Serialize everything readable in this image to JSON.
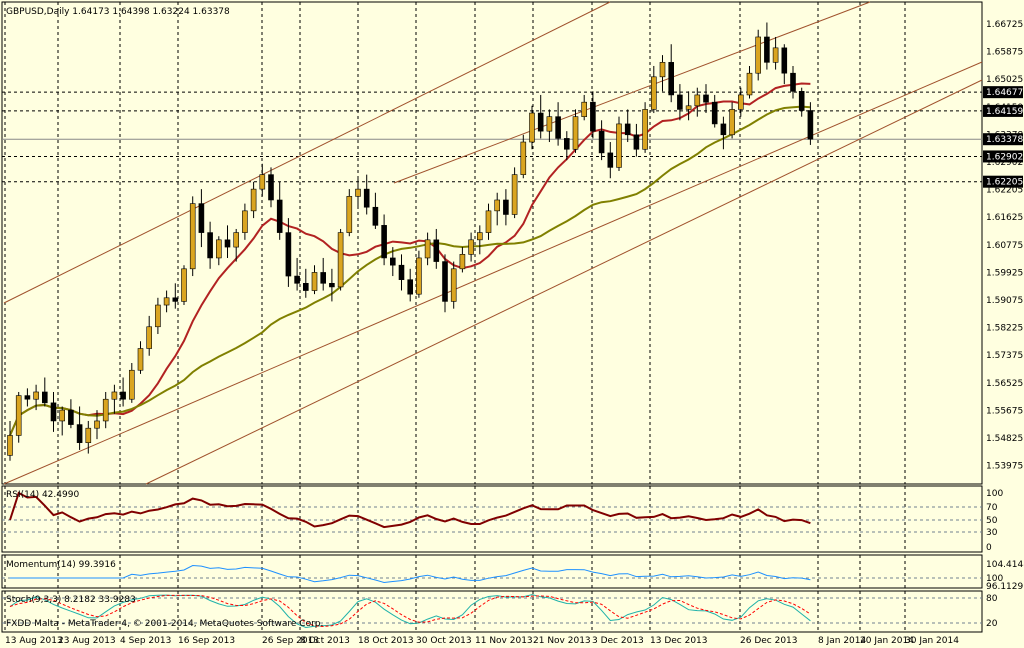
{
  "main": {
    "symbol_line": "GBPUSD,Daily  1.64173 1.64398 1.63224 1.63378",
    "price_ticks": [
      "1.66725",
      "1.65875",
      "1.65025",
      "1.64159",
      "1.63378",
      "1.62902",
      "1.62205",
      "1.61625",
      "1.60775",
      "1.59925",
      "1.59075",
      "1.58225",
      "1.57375",
      "1.56525",
      "1.55675",
      "1.54825",
      "1.53975"
    ],
    "price_labels": [
      {
        "text": "1.64677",
        "value": 1.64677
      },
      {
        "text": "1.64159",
        "value": 1.64159
      },
      {
        "text": "1.63378",
        "value": 1.63378
      },
      {
        "text": "1.62902",
        "value": 1.62902
      },
      {
        "text": "1.62205",
        "value": 1.62205
      }
    ],
    "date_labels": [
      "13 Aug 2013",
      "23 Aug 2013",
      "4 Sep 2013",
      "16 Sep 2013",
      "26 Sep 2013",
      "8 Oct 2013",
      "18 Oct 2013",
      "30 Oct 2013",
      "11 Nov 2013",
      "21 Nov 2013",
      "3 Dec 2013",
      "13 Dec 2013",
      "26 Dec 2013",
      "8 Jan 2014",
      "20 Jan 2014",
      "30 Jan 2014"
    ],
    "footer": "FXDD Malta - MetaTrader 4, © 2001-2014, MetaQuotes Software Corp."
  },
  "rsi": {
    "label": "RSI(14) 42.4990",
    "ticks": [
      "100",
      "70",
      "50",
      "30",
      "0"
    ]
  },
  "momentum": {
    "label": "Momentum(14) 99.3916",
    "ticks": [
      "104.4148",
      "100",
      "96.1129"
    ]
  },
  "stoch": {
    "label": "Stoch(9,3,3) 8.2182 33.9283",
    "ticks": [
      "80",
      "20"
    ]
  },
  "colors": {
    "background": "#ffffe0",
    "bull": "#daa520",
    "bear": "#000000",
    "ma_fast": "#b22222",
    "ma_slow": "#808000",
    "channel": "#a0522d",
    "rsi": "#800000",
    "momentum": "#1e90ff",
    "stoch_main": "#20b2aa",
    "stoch_signal": "#ff0000"
  },
  "chart_data": {
    "type": "candlestick",
    "ylim": [
      1.5397,
      1.67
    ],
    "dates": [
      "13 Aug 2013",
      "23 Aug 2013",
      "4 Sep 2013",
      "16 Sep 2013",
      "26 Sep 2013",
      "8 Oct 2013",
      "18 Oct 2013",
      "30 Oct 2013",
      "11 Nov 2013",
      "21 Nov 2013",
      "3 Dec 2013",
      "13 Dec 2013",
      "26 Dec 2013",
      "8 Jan 2014",
      "20 Jan 2014",
      "30 Jan 2014"
    ],
    "ohlc": [
      [
        1.5465,
        1.556,
        1.545,
        1.552
      ],
      [
        1.552,
        1.564,
        1.55,
        1.563
      ],
      [
        1.563,
        1.565,
        1.56,
        1.562
      ],
      [
        1.562,
        1.566,
        1.559,
        1.564
      ],
      [
        1.564,
        1.568,
        1.56,
        1.561
      ],
      [
        1.561,
        1.564,
        1.553,
        1.556
      ],
      [
        1.556,
        1.56,
        1.552,
        1.559
      ],
      [
        1.559,
        1.562,
        1.554,
        1.555
      ],
      [
        1.555,
        1.56,
        1.548,
        1.55
      ],
      [
        1.55,
        1.556,
        1.547,
        1.554
      ],
      [
        1.554,
        1.559,
        1.551,
        1.556
      ],
      [
        1.556,
        1.564,
        1.554,
        1.562
      ],
      [
        1.562,
        1.566,
        1.558,
        1.564
      ],
      [
        1.564,
        1.568,
        1.56,
        1.562
      ],
      [
        1.562,
        1.572,
        1.561,
        1.57
      ],
      [
        1.57,
        1.578,
        1.569,
        1.576
      ],
      [
        1.576,
        1.585,
        1.574,
        1.582
      ],
      [
        1.582,
        1.59,
        1.58,
        1.588
      ],
      [
        1.588,
        1.592,
        1.586,
        1.59
      ],
      [
        1.59,
        1.594,
        1.587,
        1.589
      ],
      [
        1.589,
        1.599,
        1.588,
        1.598
      ],
      [
        1.598,
        1.618,
        1.596,
        1.616
      ],
      [
        1.616,
        1.62,
        1.604,
        1.608
      ],
      [
        1.608,
        1.611,
        1.598,
        1.601
      ],
      [
        1.601,
        1.607,
        1.599,
        1.606
      ],
      [
        1.606,
        1.61,
        1.601,
        1.604
      ],
      [
        1.604,
        1.609,
        1.6,
        1.608
      ],
      [
        1.608,
        1.616,
        1.606,
        1.614
      ],
      [
        1.614,
        1.622,
        1.612,
        1.62
      ],
      [
        1.62,
        1.627,
        1.618,
        1.624
      ],
      [
        1.624,
        1.626,
        1.615,
        1.617
      ],
      [
        1.617,
        1.622,
        1.606,
        1.608
      ],
      [
        1.608,
        1.612,
        1.593,
        1.596
      ],
      [
        1.596,
        1.601,
        1.592,
        1.594
      ],
      [
        1.594,
        1.598,
        1.59,
        1.592
      ],
      [
        1.592,
        1.599,
        1.591,
        1.597
      ],
      [
        1.597,
        1.601,
        1.592,
        1.594
      ],
      [
        1.594,
        1.598,
        1.589,
        1.593
      ],
      [
        1.593,
        1.609,
        1.592,
        1.608
      ],
      [
        1.608,
        1.62,
        1.607,
        1.618
      ],
      [
        1.618,
        1.623,
        1.615,
        1.62
      ],
      [
        1.62,
        1.624,
        1.613,
        1.615
      ],
      [
        1.615,
        1.619,
        1.609,
        1.61
      ],
      [
        1.61,
        1.613,
        1.599,
        1.601
      ],
      [
        1.601,
        1.604,
        1.596,
        1.599
      ],
      [
        1.599,
        1.602,
        1.592,
        1.595
      ],
      [
        1.595,
        1.598,
        1.589,
        1.591
      ],
      [
        1.591,
        1.603,
        1.59,
        1.601
      ],
      [
        1.601,
        1.608,
        1.599,
        1.606
      ],
      [
        1.606,
        1.609,
        1.598,
        1.6
      ],
      [
        1.6,
        1.602,
        1.586,
        1.589
      ],
      [
        1.589,
        1.6,
        1.587,
        1.598
      ],
      [
        1.598,
        1.604,
        1.597,
        1.602
      ],
      [
        1.602,
        1.608,
        1.6,
        1.606
      ],
      [
        1.606,
        1.61,
        1.602,
        1.608
      ],
      [
        1.608,
        1.616,
        1.606,
        1.614
      ],
      [
        1.614,
        1.619,
        1.61,
        1.617
      ],
      [
        1.617,
        1.62,
        1.61,
        1.613
      ],
      [
        1.613,
        1.626,
        1.612,
        1.624
      ],
      [
        1.624,
        1.635,
        1.623,
        1.633
      ],
      [
        1.633,
        1.643,
        1.631,
        1.641
      ],
      [
        1.641,
        1.646,
        1.634,
        1.636
      ],
      [
        1.636,
        1.642,
        1.633,
        1.64
      ],
      [
        1.64,
        1.644,
        1.632,
        1.634
      ],
      [
        1.634,
        1.636,
        1.628,
        1.631
      ],
      [
        1.631,
        1.642,
        1.63,
        1.64
      ],
      [
        1.64,
        1.646,
        1.639,
        1.644
      ],
      [
        1.644,
        1.647,
        1.634,
        1.636
      ],
      [
        1.636,
        1.639,
        1.628,
        1.63
      ],
      [
        1.63,
        1.633,
        1.623,
        1.626
      ],
      [
        1.626,
        1.64,
        1.625,
        1.638
      ],
      [
        1.638,
        1.642,
        1.633,
        1.635
      ],
      [
        1.635,
        1.638,
        1.629,
        1.631
      ],
      [
        1.631,
        1.644,
        1.63,
        1.642
      ],
      [
        1.642,
        1.654,
        1.641,
        1.651
      ],
      [
        1.651,
        1.657,
        1.647,
        1.655
      ],
      [
        1.655,
        1.66,
        1.644,
        1.646
      ],
      [
        1.646,
        1.649,
        1.639,
        1.642
      ],
      [
        1.642,
        1.647,
        1.639,
        1.643
      ],
      [
        1.643,
        1.648,
        1.64,
        1.646
      ],
      [
        1.646,
        1.649,
        1.641,
        1.644
      ],
      [
        1.644,
        1.646,
        1.637,
        1.638
      ],
      [
        1.638,
        1.64,
        1.631,
        1.635
      ],
      [
        1.635,
        1.644,
        1.634,
        1.642
      ],
      [
        1.642,
        1.648,
        1.64,
        1.646
      ],
      [
        1.646,
        1.654,
        1.645,
        1.652
      ],
      [
        1.652,
        1.664,
        1.65,
        1.662
      ],
      [
        1.662,
        1.666,
        1.653,
        1.655
      ],
      [
        1.655,
        1.662,
        1.653,
        1.659
      ],
      [
        1.659,
        1.66,
        1.649,
        1.652
      ],
      [
        1.652,
        1.654,
        1.645,
        1.647
      ],
      [
        1.647,
        1.648,
        1.64,
        1.6417
      ],
      [
        1.6417,
        1.644,
        1.6322,
        1.6338
      ]
    ]
  }
}
